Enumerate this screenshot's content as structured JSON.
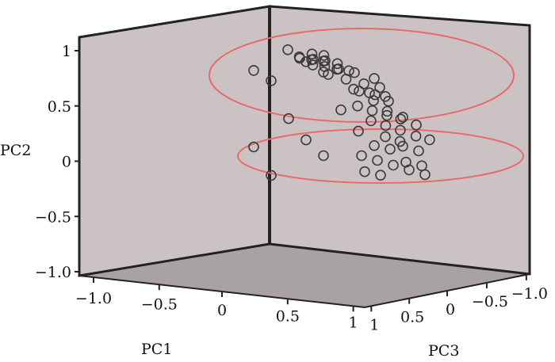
{
  "chart_data": {
    "type": "scatter",
    "title": "",
    "xlabel": "PC1",
    "ylabel": "PC2",
    "zlabel": "PC3",
    "ylim": [
      -1.0,
      1.0
    ],
    "xlim": [
      -1.0,
      1.0
    ],
    "zlim": [
      -1.0,
      1.0
    ],
    "y_ticks": [
      "1",
      "0.5",
      "0",
      "−0.5",
      "−1.0"
    ],
    "x_ticks": [
      "−1.0",
      "−0.5",
      "0",
      "0.5",
      "1"
    ],
    "z_ticks": [
      "1",
      "0.5",
      "0",
      "−0.5",
      "−1.0"
    ],
    "marker": "open-circle",
    "grid": false,
    "point_color": "#3a3a3a",
    "cluster_outline_color": "#e86a6a",
    "pane_color": "#cbc3c3",
    "floor_color": "#a9a2a2",
    "clusters": [
      {
        "name": "upper-cluster"
      },
      {
        "name": "lower-cluster"
      }
    ],
    "points_pc2": [
      0.98,
      0.97,
      0.96,
      0.95,
      0.94,
      0.93,
      0.92,
      0.9,
      0.89,
      0.88,
      0.87,
      0.86,
      0.85,
      0.84,
      0.82,
      0.8,
      0.78,
      0.75,
      0.72,
      0.7,
      0.68,
      0.66,
      0.64,
      0.62,
      0.6,
      0.58,
      0.55,
      0.52,
      0.5,
      0.48,
      0.45,
      0.42,
      0.4,
      0.38,
      0.36,
      0.33,
      0.3,
      0.28,
      0.25,
      0.22,
      0.2,
      0.18,
      0.15,
      0.12,
      0.1,
      0.08,
      0.05,
      0.02,
      0.0,
      -0.02,
      -0.05,
      -0.08,
      -0.1,
      -0.12,
      -0.15,
      0.9,
      0.85,
      0.8,
      0.75,
      0.45,
      0.4,
      0.25,
      0.2,
      0.1,
      0.05,
      -0.1
    ]
  }
}
